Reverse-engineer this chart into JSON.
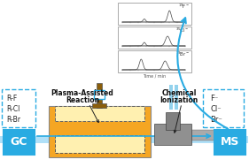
{
  "bg_color": "#ffffff",
  "gc_box_color": "#29ABE2",
  "ms_box_color": "#29ABE2",
  "gc_text": "GC",
  "ms_text": "MS",
  "left_box_text": [
    "R-F",
    "R-Cl",
    "R-Br"
  ],
  "right_box_text": [
    "F⁻",
    "Cl⁻",
    "Br⁻"
  ],
  "plasma_label": [
    "Plasma-Assisted",
    "Reaction"
  ],
  "chem_label": [
    "Chemical",
    "Ionization"
  ],
  "arrow_color": "#29ABE2",
  "dashed_box_color": "#29ABE2",
  "gold_color": "#F5A623",
  "gold_light": "#FAD06A",
  "gold_pale": "#FFF0B0",
  "gray_color": "#808080",
  "gray_dark": "#606060",
  "gray_mid": "#909090",
  "gray_light": "#AAAAAA",
  "blue_cap": "#87CEEB",
  "brown_rod": "#8B5E0A"
}
